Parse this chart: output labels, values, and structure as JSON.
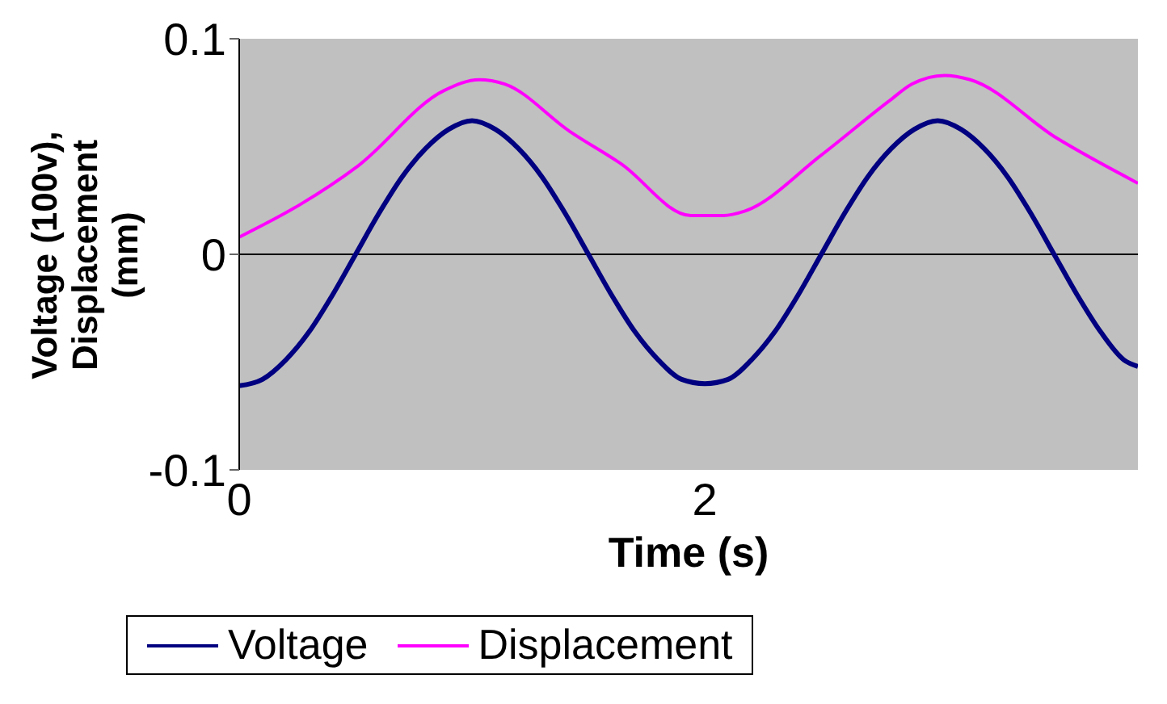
{
  "chart_data": {
    "type": "line",
    "xlabel": "Time (s)",
    "ylabel": "Voltage (100v), Displacement (mm)",
    "xlim": [
      0,
      3.86
    ],
    "xticks": [
      0,
      2
    ],
    "ylim": [
      -0.1,
      0.1
    ],
    "yticks": [
      -0.1,
      0,
      0.1
    ],
    "grid": false,
    "ref_lines": [
      {
        "axis": "y",
        "value": 0,
        "color": "#000000"
      }
    ],
    "legend": "bottom",
    "marker": "none",
    "line_style": "solid",
    "series": [
      {
        "name": "Voltage",
        "color": "#000080",
        "x": [
          0,
          0.1,
          0.2,
          0.3,
          0.4,
          0.5,
          0.6,
          0.7,
          0.8,
          0.9,
          1.0,
          1.1,
          1.2,
          1.3,
          1.4,
          1.5,
          1.6,
          1.7,
          1.8,
          1.9,
          2.0,
          2.1,
          2.2,
          2.3,
          2.4,
          2.5,
          2.6,
          2.7,
          2.8,
          2.9,
          3.0,
          3.1,
          3.2,
          3.3,
          3.4,
          3.5,
          3.6,
          3.7,
          3.8,
          3.86
        ],
        "values": [
          -0.061,
          -0.058,
          -0.049,
          -0.036,
          -0.019,
          0,
          0.019,
          0.036,
          0.049,
          0.058,
          0.062,
          0.058,
          0.049,
          0.036,
          0.019,
          0,
          -0.019,
          -0.036,
          -0.049,
          -0.058,
          -0.06,
          -0.058,
          -0.049,
          -0.036,
          -0.019,
          0,
          0.019,
          0.036,
          0.049,
          0.058,
          0.062,
          0.058,
          0.049,
          0.036,
          0.019,
          0,
          -0.019,
          -0.036,
          -0.049,
          -0.052
        ]
      },
      {
        "name": "Displacement",
        "color": "#ff00ff",
        "x": [
          0,
          0.26,
          0.51,
          0.88,
          1.03,
          1.14,
          1.42,
          1.64,
          1.94,
          2.08,
          2.17,
          2.5,
          2.79,
          2.89,
          3.03,
          3.14,
          3.51,
          3.86
        ],
        "values": [
          0.008,
          0.023,
          0.041,
          0.076,
          0.081,
          0.079,
          0.057,
          0.042,
          0.018,
          0.018,
          0.02,
          0.046,
          0.071,
          0.079,
          0.083,
          0.081,
          0.054,
          0.033
        ]
      }
    ]
  }
}
